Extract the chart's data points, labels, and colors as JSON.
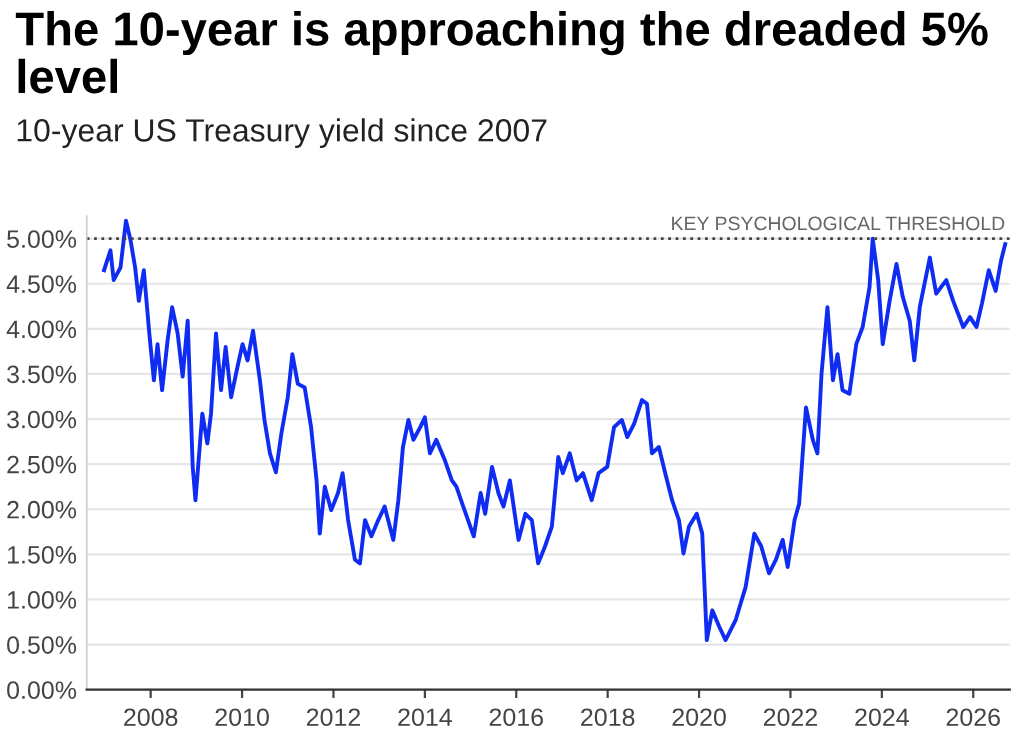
{
  "chart_data": {
    "type": "line",
    "title": "The 10-year is approaching the dreaded 5% level",
    "subtitle": "10-year US Treasury yield since 2007",
    "series": [
      {
        "color": "#0f2cf2",
        "x": [
          2006.98,
          2007.12,
          2007.19,
          2007.34,
          2007.46,
          2007.56,
          2007.66,
          2007.74,
          2007.85,
          2007.97,
          2008.07,
          2008.15,
          2008.25,
          2008.37,
          2008.47,
          2008.59,
          2008.7,
          2008.81,
          2008.92,
          2008.98,
          2009.13,
          2009.24,
          2009.32,
          2009.43,
          2009.54,
          2009.64,
          2009.76,
          2009.9,
          2010.01,
          2010.12,
          2010.24,
          2010.39,
          2010.49,
          2010.61,
          2010.74,
          2010.86,
          2011.0,
          2011.1,
          2011.22,
          2011.37,
          2011.51,
          2011.63,
          2011.7,
          2011.81,
          2011.95,
          2012.1,
          2012.2,
          2012.32,
          2012.47,
          2012.58,
          2012.69,
          2012.83,
          2012.98,
          2013.12,
          2013.31,
          2013.42,
          2013.52,
          2013.64,
          2013.75,
          2013.9,
          2014.0,
          2014.11,
          2014.25,
          2014.44,
          2014.59,
          2014.69,
          2014.84,
          2015.07,
          2015.22,
          2015.32,
          2015.47,
          2015.61,
          2015.72,
          2015.86,
          2016.05,
          2016.2,
          2016.34,
          2016.48,
          2016.63,
          2016.78,
          2016.92,
          2017.02,
          2017.17,
          2017.32,
          2017.46,
          2017.65,
          2017.8,
          2017.99,
          2018.14,
          2018.31,
          2018.43,
          2018.58,
          2018.75,
          2018.86,
          2018.97,
          2019.12,
          2019.26,
          2019.41,
          2019.56,
          2019.66,
          2019.78,
          2019.95,
          2020.07,
          2020.17,
          2020.29,
          2020.44,
          2020.58,
          2020.8,
          2021.02,
          2021.21,
          2021.36,
          2021.53,
          2021.68,
          2021.83,
          2021.94,
          2022.09,
          2022.19,
          2022.34,
          2022.49,
          2022.59,
          2022.68,
          2022.81,
          2022.93,
          2023.03,
          2023.14,
          2023.29,
          2023.44,
          2023.58,
          2023.73,
          2023.8,
          2023.92,
          2024.02,
          2024.17,
          2024.32,
          2024.46,
          2024.61,
          2024.71,
          2024.83,
          2025.05,
          2025.19,
          2025.41,
          2025.56,
          2025.78,
          2025.93,
          2026.07,
          2026.19,
          2026.34,
          2026.49,
          2026.61,
          2026.7
        ],
        "values": [
          4.65,
          4.87,
          4.54,
          4.68,
          5.2,
          4.98,
          4.68,
          4.31,
          4.65,
          3.95,
          3.43,
          3.83,
          3.32,
          3.87,
          4.24,
          3.95,
          3.47,
          4.09,
          2.47,
          2.1,
          3.06,
          2.73,
          3.06,
          3.95,
          3.32,
          3.8,
          3.24,
          3.58,
          3.83,
          3.65,
          3.98,
          3.43,
          2.99,
          2.62,
          2.41,
          2.84,
          3.24,
          3.72,
          3.39,
          3.35,
          2.91,
          2.32,
          1.73,
          2.25,
          1.99,
          2.18,
          2.4,
          1.88,
          1.44,
          1.4,
          1.88,
          1.7,
          1.88,
          2.03,
          1.66,
          2.1,
          2.69,
          2.99,
          2.77,
          2.91,
          3.02,
          2.62,
          2.77,
          2.54,
          2.32,
          2.25,
          2.03,
          1.7,
          2.18,
          1.95,
          2.47,
          2.18,
          2.03,
          2.32,
          1.66,
          1.95,
          1.88,
          1.4,
          1.59,
          1.81,
          2.58,
          2.4,
          2.62,
          2.32,
          2.4,
          2.1,
          2.4,
          2.47,
          2.91,
          2.99,
          2.8,
          2.95,
          3.21,
          3.17,
          2.62,
          2.69,
          2.4,
          2.1,
          1.88,
          1.51,
          1.81,
          1.95,
          1.73,
          0.55,
          0.88,
          0.7,
          0.55,
          0.77,
          1.14,
          1.73,
          1.59,
          1.29,
          1.44,
          1.66,
          1.36,
          1.88,
          2.06,
          3.13,
          2.77,
          2.62,
          3.5,
          4.24,
          3.43,
          3.72,
          3.32,
          3.28,
          3.83,
          4.02,
          4.46,
          5.0,
          4.54,
          3.83,
          4.31,
          4.72,
          4.35,
          4.09,
          3.65,
          4.24,
          4.79,
          4.39,
          4.54,
          4.31,
          4.02,
          4.13,
          4.02,
          4.28,
          4.65,
          4.42,
          4.76,
          4.94
        ]
      }
    ],
    "xlim": [
      2006.6,
      2026.8
    ],
    "xticks": [
      2008,
      2010,
      2012,
      2014,
      2016,
      2018,
      2020,
      2022,
      2024,
      2026
    ],
    "ylim": [
      0,
      5.25
    ],
    "yticks": [
      {
        "value": 0,
        "label": "0.00%"
      },
      {
        "value": 0.5,
        "label": "0.50%"
      },
      {
        "value": 1,
        "label": "1.00%"
      },
      {
        "value": 1.5,
        "label": "1.50%"
      },
      {
        "value": 2,
        "label": "2.00%"
      },
      {
        "value": 2.5,
        "label": "2.50%"
      },
      {
        "value": 3,
        "label": "3.00%"
      },
      {
        "value": 3.5,
        "label": "3.50%"
      },
      {
        "value": 4,
        "label": "4.00%"
      },
      {
        "value": 4.5,
        "label": "4.50%"
      },
      {
        "value": 5,
        "label": "5.00%"
      }
    ],
    "ref_lines": [
      {
        "axis": "y",
        "value": 5,
        "label": "KEY PSYCHOLOGICAL THRESHOLD",
        "color": "#444444",
        "line_style": "dotted"
      }
    ],
    "grid": "y",
    "legend": false
  }
}
